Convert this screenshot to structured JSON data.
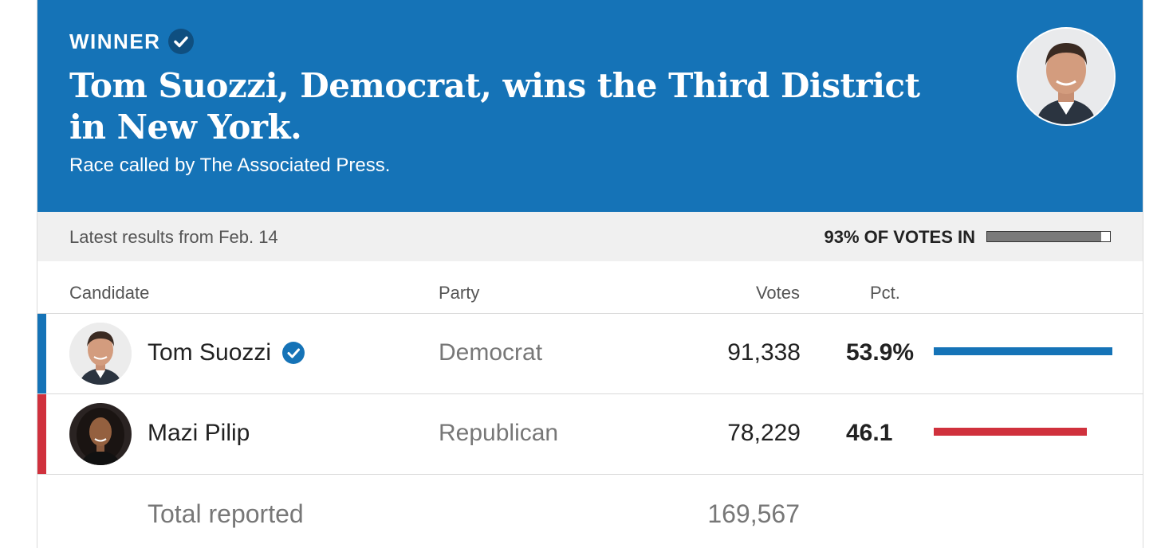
{
  "header": {
    "winner_label": "WINNER",
    "headline": "Tom Suozzi, Democrat, wins the Third District in New York.",
    "subhead": "Race called by The Associated Press.",
    "background_color": "#1573b7"
  },
  "status": {
    "latest": "Latest results from Feb. 14",
    "votes_in_label": "93% OF VOTES IN",
    "votes_in_fraction": 0.93
  },
  "columns": {
    "candidate": "Candidate",
    "party": "Party",
    "votes": "Votes",
    "pct": "Pct."
  },
  "candidates": [
    {
      "name": "Tom Suozzi",
      "party": "Democrat",
      "votes": "91,338",
      "pct": "53.9%",
      "pct_value": 53.9,
      "winner": true,
      "color": "#1573b7"
    },
    {
      "name": "Mazi Pilip",
      "party": "Republican",
      "votes": "78,229",
      "pct": "46.1",
      "pct_value": 46.1,
      "winner": false,
      "color": "#d0313d"
    }
  ],
  "total": {
    "label": "Total reported",
    "votes": "169,567"
  },
  "icons": {
    "winner_check": "check-circle-icon",
    "candidate_check": "check-circle-icon"
  }
}
